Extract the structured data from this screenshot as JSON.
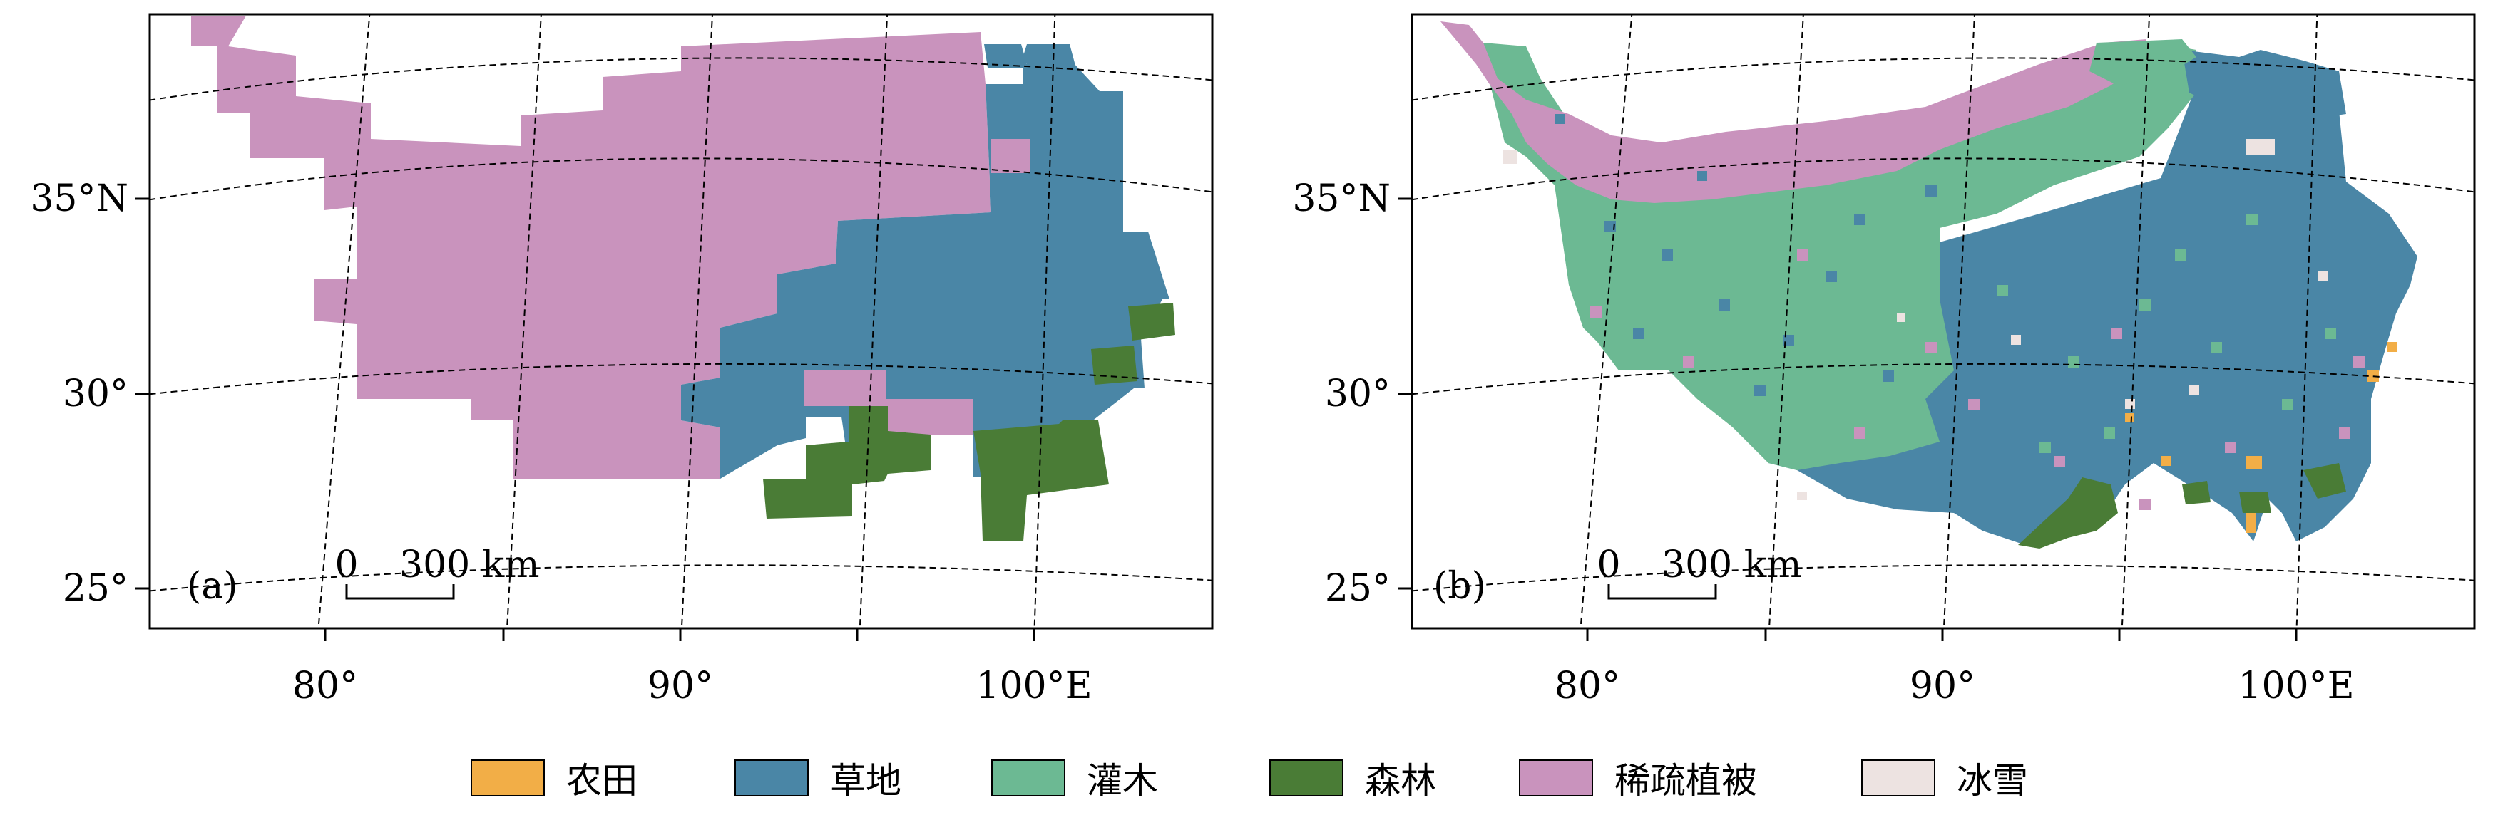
{
  "colors": {
    "cropland": "#F2AE47",
    "grassland": "#4A86A6",
    "shrub": "#6CB993",
    "forest": "#4A7C36",
    "sparse": "#C993BD",
    "snow": "#EDE3E1"
  },
  "axes": {
    "lon_labels": [
      "80°",
      "90°",
      "100°E"
    ],
    "lat_labels": [
      "35°N",
      "30°",
      "25°"
    ]
  },
  "panels": [
    {
      "label": "(a)",
      "scale_zero": "0",
      "scale_text": "300 km"
    },
    {
      "label": "(b)",
      "scale_zero": "0",
      "scale_text": "300 km"
    }
  ],
  "legend": [
    {
      "key": "cropland",
      "label": "农田"
    },
    {
      "key": "grassland",
      "label": "草地"
    },
    {
      "key": "shrub",
      "label": "灌木"
    },
    {
      "key": "forest",
      "label": "森林"
    },
    {
      "key": "sparse",
      "label": "稀疏植被"
    },
    {
      "key": "snow",
      "label": "冰雪"
    }
  ]
}
